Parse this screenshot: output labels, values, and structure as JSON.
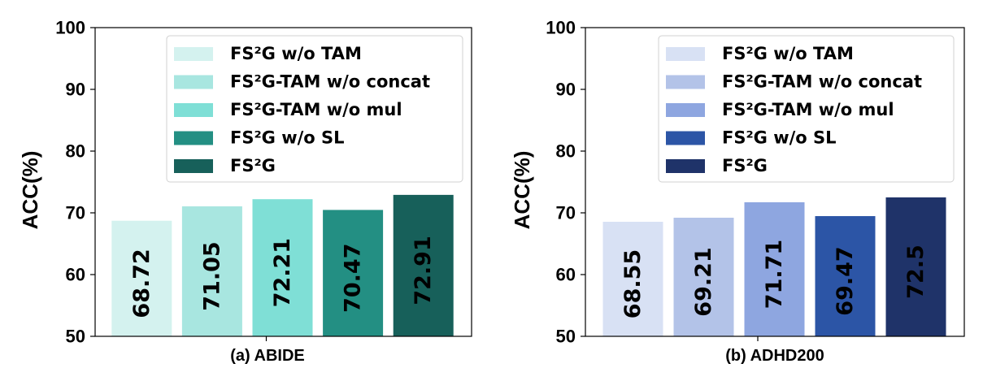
{
  "chart_data": [
    {
      "type": "bar",
      "caption": "(a)  ABIDE",
      "ylabel": "ACC(%)",
      "ylim": [
        50,
        100
      ],
      "yticks": [
        50,
        60,
        70,
        80,
        90,
        100
      ],
      "legend_position": "top-right",
      "categories": [
        "FS²G w/o TAM",
        "FS²G-TAM w/o concat",
        "FS²G-TAM w/o mul",
        "FS²G w/o SL",
        "FS²G"
      ],
      "values": [
        68.72,
        71.05,
        72.21,
        70.47,
        72.91
      ],
      "colors": [
        "#d4f2ef",
        "#a8e6e0",
        "#7fdfd6",
        "#238f83",
        "#17605a"
      ]
    },
    {
      "type": "bar",
      "caption": "(b)  ADHD200",
      "ylabel": "ACC(%)",
      "ylim": [
        50,
        100
      ],
      "yticks": [
        50,
        60,
        70,
        80,
        90,
        100
      ],
      "legend_position": "top-right",
      "categories": [
        "FS²G w/o TAM",
        "FS²G-TAM w/o concat",
        "FS²G-TAM w/o mul",
        "FS²G w/o SL",
        "FS²G"
      ],
      "values": [
        68.55,
        69.21,
        71.71,
        69.47,
        72.5
      ],
      "colors": [
        "#d8e1f4",
        "#b3c3e8",
        "#8ea6e0",
        "#2c55a6",
        "#1f3369"
      ]
    }
  ]
}
